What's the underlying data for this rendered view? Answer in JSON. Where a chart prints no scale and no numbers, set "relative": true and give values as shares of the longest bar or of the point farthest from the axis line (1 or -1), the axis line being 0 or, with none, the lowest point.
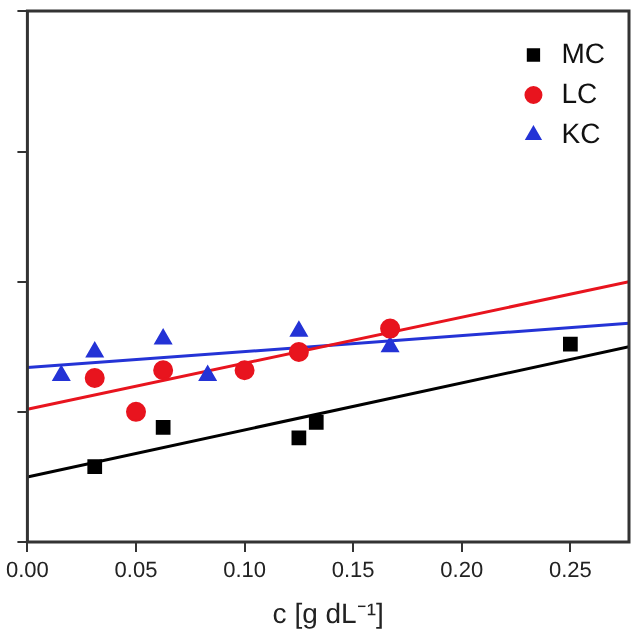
{
  "chart_data": {
    "type": "scatter",
    "xlabel": "c [g dL⁻¹]",
    "relative": true,
    "legend": "top right",
    "grid": false,
    "xlim": [
      0,
      0.277
    ],
    "xticks": [
      {
        "value": 0,
        "label": "0.00"
      },
      {
        "value": 0.05,
        "label": "0.05"
      },
      {
        "value": 0.1,
        "label": "0.10"
      },
      {
        "value": 0.15,
        "label": "0.15"
      },
      {
        "value": 0.2,
        "label": "0.20"
      },
      {
        "value": 0.25,
        "label": "0.25"
      }
    ],
    "series": [
      {
        "name": "MC",
        "color": "#000000",
        "marker": "square",
        "x": [
          0.031,
          0.0625,
          0.125,
          0.133,
          0.25
        ],
        "values": [
          0.29,
          0.44,
          0.4,
          0.46,
          0.76
        ]
      },
      {
        "name": "LC",
        "color": "#e8141e",
        "marker": "circle",
        "x": [
          0.031,
          0.05,
          0.0625,
          0.1,
          0.125,
          0.167
        ],
        "values": [
          0.63,
          0.5,
          0.66,
          0.66,
          0.73,
          0.82
        ]
      },
      {
        "name": "KC",
        "color": "#2433d6",
        "marker": "triangle",
        "x": [
          0.0156,
          0.031,
          0.0625,
          0.083,
          0.125,
          0.167
        ],
        "values": [
          0.64,
          0.73,
          0.78,
          0.64,
          0.81,
          0.75
        ]
      },
      {
        "type": "line",
        "color": "#000000",
        "x": [
          0,
          0.277
        ],
        "values": [
          0.25,
          0.75
        ]
      },
      {
        "type": "line",
        "color": "#e8141e",
        "x": [
          0,
          0.277
        ],
        "values": [
          0.51,
          1
        ]
      },
      {
        "type": "line",
        "color": "#2433d6",
        "x": [
          0,
          0.277
        ],
        "values": [
          0.67,
          0.84
        ]
      }
    ]
  }
}
